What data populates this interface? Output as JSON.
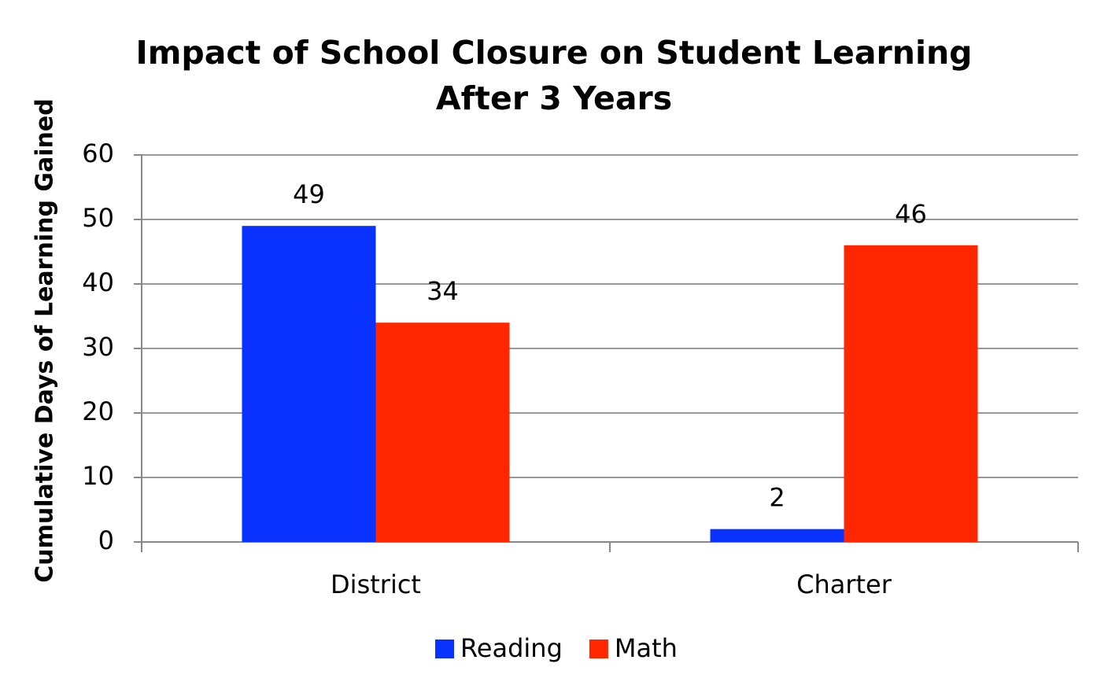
{
  "chart_data": {
    "type": "bar",
    "title": "Impact of School Closure on Student Learning After 3 Years",
    "y_label": "Cumulative Days of Learning Gained",
    "categories": [
      "District",
      "Charter"
    ],
    "series": [
      {
        "name": "Reading",
        "color": "#0a32ff",
        "values": [
          49,
          2
        ]
      },
      {
        "name": "Math",
        "color": "#ff2600",
        "values": [
          34,
          46
        ]
      }
    ],
    "ylim": [
      0,
      60
    ],
    "yticks": [
      0,
      10,
      20,
      30,
      40,
      50,
      60
    ],
    "grid": true,
    "legend": "bottom"
  }
}
